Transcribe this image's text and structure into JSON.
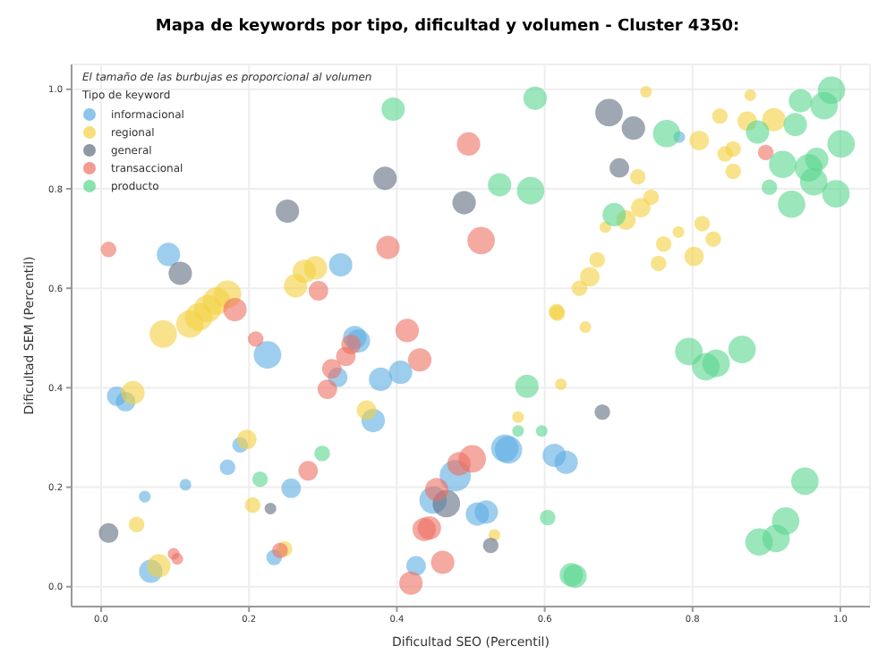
{
  "chart_data": {
    "type": "bubble",
    "title": "Mapa de keywords por tipo, dificultad y volumen - Cluster 4350:",
    "xlabel": "Dificultad SEO (Percentil)",
    "ylabel": "Dificultad SEM (Percentil)",
    "legend_title": "Tipo de keyword",
    "annotations": [
      "El tamaño de las burbujas es proporcional al volumen"
    ],
    "xlim": [
      -0.04,
      1.04
    ],
    "ylim": [
      -0.04,
      1.05
    ],
    "xticks": [
      {
        "value": 0,
        "label": "0.0"
      },
      {
        "value": 0.2,
        "label": "0.2"
      },
      {
        "value": 0.4,
        "label": "0.4"
      },
      {
        "value": 0.6,
        "label": "0.6"
      },
      {
        "value": 0.8,
        "label": "0.8"
      },
      {
        "value": 1,
        "label": "1.0"
      }
    ],
    "yticks": [
      {
        "value": 0,
        "label": "0.0"
      },
      {
        "value": 0.2,
        "label": "0.2"
      },
      {
        "value": 0.4,
        "label": "0.4"
      },
      {
        "value": 0.6,
        "label": "0.6"
      },
      {
        "value": 0.8,
        "label": "0.8"
      },
      {
        "value": 1,
        "label": "1.0"
      }
    ],
    "grid": true,
    "legend": "top left",
    "series": [
      {
        "name": "informacional",
        "color": "#5dade2",
        "x": [
          0.091,
          0.324,
          0.225,
          0.343,
          0.348,
          0.32,
          0.378,
          0.405,
          0.021,
          0.033,
          0.368,
          0.171,
          0.188,
          0.114,
          0.059,
          0.257,
          0.067,
          0.234,
          0.426,
          0.479,
          0.546,
          0.551,
          0.613,
          0.629,
          0.509,
          0.521,
          0.449,
          0.782
        ],
        "values": [
          0.668,
          0.647,
          0.466,
          0.501,
          0.494,
          0.421,
          0.417,
          0.431,
          0.383,
          0.372,
          0.334,
          0.24,
          0.285,
          0.205,
          0.181,
          0.198,
          0.031,
          0.059,
          0.042,
          0.223,
          0.278,
          0.275,
          0.264,
          0.25,
          0.146,
          0.15,
          0.174,
          0.904
        ],
        "sizes": [
          0.56,
          0.56,
          0.77,
          0.56,
          0.56,
          0.39,
          0.56,
          0.56,
          0.39,
          0.39,
          0.56,
          0.25,
          0.25,
          0.14,
          0.14,
          0.39,
          0.56,
          0.25,
          0.39,
          1,
          0.77,
          0.77,
          0.56,
          0.56,
          0.56,
          0.56,
          0.77,
          0.14
        ]
      },
      {
        "name": "regional",
        "color": "#f4d03f",
        "x": [
          0.084,
          0.12,
          0.132,
          0.144,
          0.156,
          0.171,
          0.263,
          0.275,
          0.29,
          0.043,
          0.359,
          0.197,
          0.205,
          0.048,
          0.248,
          0.078,
          0.616,
          0.655,
          0.622,
          0.564,
          0.532,
          0.737,
          0.878,
          0.837,
          0.874,
          0.91,
          0.809,
          0.844,
          0.855,
          0.855,
          0.726,
          0.744,
          0.73,
          0.71,
          0.682,
          0.781,
          0.813,
          0.828,
          0.761,
          0.802,
          0.754,
          0.671,
          0.661,
          0.647,
          0.617
        ],
        "values": [
          0.508,
          0.528,
          0.542,
          0.559,
          0.574,
          0.588,
          0.605,
          0.634,
          0.641,
          0.39,
          0.355,
          0.296,
          0.164,
          0.125,
          0.076,
          0.042,
          0.553,
          0.522,
          0.407,
          0.341,
          0.104,
          0.995,
          0.988,
          0.946,
          0.936,
          0.939,
          0.897,
          0.87,
          0.88,
          0.835,
          0.824,
          0.783,
          0.762,
          0.737,
          0.723,
          0.713,
          0.73,
          0.699,
          0.689,
          0.664,
          0.65,
          0.657,
          0.623,
          0.6,
          0.55
        ],
        "sizes": [
          0.77,
          0.77,
          0.77,
          0.77,
          0.77,
          0.77,
          0.56,
          0.56,
          0.56,
          0.56,
          0.39,
          0.39,
          0.25,
          0.25,
          0.25,
          0.56,
          0.25,
          0.14,
          0.14,
          0.14,
          0.14,
          0.14,
          0.14,
          0.25,
          0.39,
          0.56,
          0.39,
          0.25,
          0.25,
          0.25,
          0.25,
          0.25,
          0.39,
          0.39,
          0.14,
          0.14,
          0.25,
          0.25,
          0.25,
          0.39,
          0.25,
          0.25,
          0.39,
          0.25,
          0.25
        ]
      },
      {
        "name": "general",
        "color": "#5d6d7e",
        "x": [
          0.252,
          0.384,
          0.107,
          0.687,
          0.72,
          0.701,
          0.491,
          0.01,
          0.229,
          0.467,
          0.678,
          0.527
        ],
        "values": [
          0.755,
          0.821,
          0.63,
          0.953,
          0.922,
          0.842,
          0.772,
          0.108,
          0.157,
          0.167,
          0.351,
          0.083
        ],
        "sizes": [
          0.56,
          0.56,
          0.56,
          0.77,
          0.56,
          0.39,
          0.56,
          0.39,
          0.14,
          0.77,
          0.25,
          0.25
        ]
      },
      {
        "name": "transaccional",
        "color": "#ec7063",
        "x": [
          0.01,
          0.388,
          0.294,
          0.181,
          0.414,
          0.497,
          0.514,
          0.899,
          0.209,
          0.431,
          0.312,
          0.331,
          0.338,
          0.306,
          0.28,
          0.242,
          0.098,
          0.103,
          0.454,
          0.437,
          0.444,
          0.462,
          0.419,
          0.502,
          0.484
        ],
        "values": [
          0.678,
          0.682,
          0.595,
          0.557,
          0.515,
          0.89,
          0.696,
          0.873,
          0.498,
          0.456,
          0.438,
          0.463,
          0.487,
          0.397,
          0.233,
          0.073,
          0.066,
          0.056,
          0.195,
          0.115,
          0.118,
          0.049,
          0.007,
          0.257,
          0.247
        ],
        "sizes": [
          0.25,
          0.56,
          0.39,
          0.56,
          0.56,
          0.56,
          0.77,
          0.25,
          0.25,
          0.56,
          0.39,
          0.39,
          0.39,
          0.39,
          0.39,
          0.25,
          0.14,
          0.14,
          0.56,
          0.56,
          0.56,
          0.56,
          0.56,
          0.77,
          0.56
        ]
      },
      {
        "name": "producto",
        "color": "#58d68d",
        "x": [
          0.395,
          0.587,
          0.539,
          0.581,
          0.694,
          0.765,
          0.888,
          0.946,
          0.988,
          0.978,
          0.939,
          1.001,
          0.922,
          0.957,
          0.968,
          0.964,
          0.994,
          0.904,
          0.934,
          0.299,
          0.215,
          0.576,
          0.564,
          0.596,
          0.604,
          0.636,
          0.641,
          0.795,
          0.818,
          0.832,
          0.867,
          0.952,
          0.926,
          0.913,
          0.89
        ],
        "values": [
          0.96,
          0.982,
          0.808,
          0.796,
          0.748,
          0.911,
          0.914,
          0.977,
          0.998,
          0.967,
          0.929,
          0.89,
          0.849,
          0.842,
          0.859,
          0.814,
          0.79,
          0.803,
          0.769,
          0.268,
          0.216,
          0.403,
          0.313,
          0.313,
          0.139,
          0.024,
          0.021,
          0.473,
          0.442,
          0.449,
          0.477,
          0.212,
          0.132,
          0.097,
          0.09
        ],
        "sizes": [
          0.56,
          0.56,
          0.56,
          0.77,
          0.56,
          0.77,
          0.56,
          0.56,
          0.77,
          0.77,
          0.56,
          0.77,
          0.77,
          0.77,
          0.56,
          0.77,
          0.77,
          0.25,
          0.77,
          0.25,
          0.25,
          0.56,
          0.14,
          0.14,
          0.25,
          0.56,
          0.56,
          0.77,
          0.77,
          0.77,
          0.77,
          0.77,
          0.77,
          0.77,
          0.77
        ]
      }
    ]
  }
}
